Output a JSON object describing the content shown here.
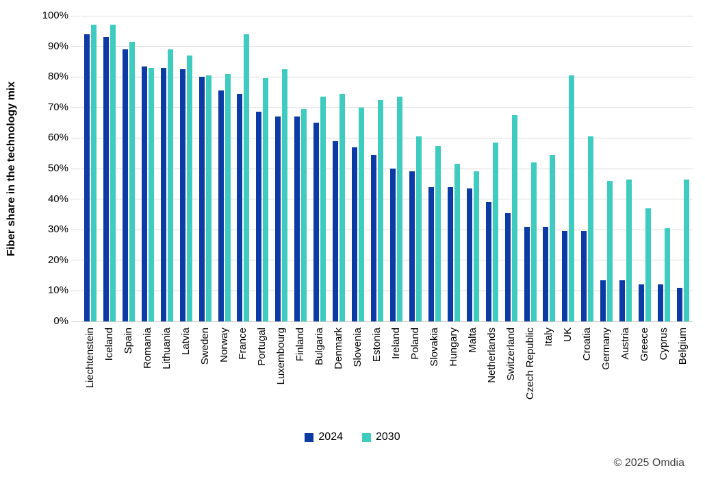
{
  "chart_data": {
    "type": "bar",
    "title": "",
    "xlabel": "",
    "ylabel": "Fiber share in the technology mix",
    "ylim": [
      0,
      100
    ],
    "ytick_step": 10,
    "ytick_labels": [
      "0%",
      "10%",
      "20%",
      "30%",
      "40%",
      "50%",
      "60%",
      "70%",
      "80%",
      "90%",
      "100%"
    ],
    "grid": true,
    "legend_position": "bottom",
    "categories": [
      "Liechtenstein",
      "Iceland",
      "Spain",
      "Romania",
      "Lithuania",
      "Latvia",
      "Sweden",
      "Norway",
      "France",
      "Portugal",
      "Luxembourg",
      "Finland",
      "Bulgaria",
      "Denmark",
      "Slovenia",
      "Estonia",
      "Ireland",
      "Poland",
      "Slovakia",
      "Hungary",
      "Malta",
      "Netherlands",
      "Switzerland",
      "Czech Republic",
      "Italy",
      "UK",
      "Croatia",
      "Germany",
      "Austria",
      "Greece",
      "Cyprus",
      "Belgium"
    ],
    "series": [
      {
        "name": "2024",
        "color": "#0d3ba5",
        "values": [
          94,
          93,
          89,
          83.5,
          83,
          82.5,
          80,
          75.5,
          74.5,
          68.5,
          67,
          67,
          65,
          59,
          57,
          54.5,
          50,
          49,
          44,
          44,
          43.5,
          39,
          35.5,
          31,
          31,
          29.5,
          29.5,
          13.5,
          13.5,
          12,
          12,
          11
        ]
      },
      {
        "name": "2030",
        "color": "#3fccc0",
        "values": [
          97,
          97,
          91.5,
          83,
          89,
          87,
          80.5,
          81,
          94,
          79.5,
          82.5,
          69.5,
          73.5,
          74.5,
          70,
          72.5,
          73.5,
          60.5,
          57.5,
          51.5,
          49,
          58.5,
          67.5,
          52,
          54.5,
          80.5,
          60.5,
          46,
          46.5,
          37,
          30.5,
          46.5
        ]
      }
    ]
  },
  "footer": {
    "copyright": "© 2025 Omdia"
  },
  "colors": {
    "background": "#ffffff",
    "gridline": "#d9d9d9",
    "axis_text": "#000000",
    "series_2024": "#0d3ba5",
    "series_2030": "#3fccc0"
  }
}
